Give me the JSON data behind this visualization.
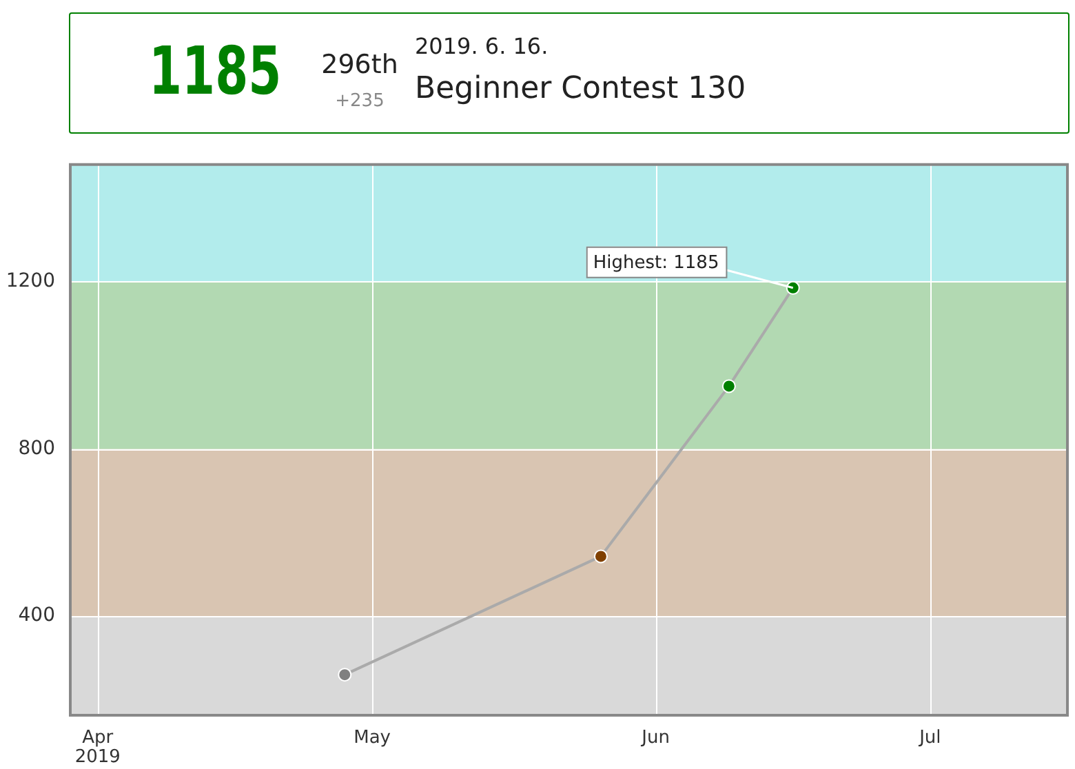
{
  "chart_data": {
    "type": "line",
    "x": [
      "2019-04-28",
      "2019-05-26",
      "2019-06-09",
      "2019-06-16"
    ],
    "series": [
      {
        "type": "line",
        "color": "#aaaaaa",
        "colors": [
          "#808080",
          "#804000",
          "#008000",
          "#008000"
        ],
        "values": [
          260,
          543,
          950,
          1185
        ]
      }
    ],
    "xlim": [
      "2019-03-29",
      "2019-07-16"
    ],
    "xticks": [
      {
        "value": "2019-04-01",
        "label": "Apr 2019"
      },
      {
        "value": "2019-05-01",
        "label": "May"
      },
      {
        "value": "2019-06-01",
        "label": "Jun"
      },
      {
        "value": "2019-07-01",
        "label": "Jul"
      }
    ],
    "ylim": [
      163,
      1480
    ],
    "yticks": [
      400,
      800,
      1200
    ],
    "bands": [
      {
        "axis": "y",
        "from": 163,
        "to": 400,
        "color": "#d9d9d9"
      },
      {
        "axis": "y",
        "from": 400,
        "to": 800,
        "color": "#d9c5b2"
      },
      {
        "axis": "y",
        "from": 800,
        "to": 1200,
        "color": "#b2d9b2"
      },
      {
        "axis": "y",
        "from": 1200,
        "to": 1480,
        "color": "#b2ecec"
      }
    ],
    "grid": true,
    "legend": false,
    "marker": "circle",
    "line_style": "solid",
    "annotations": [
      "1185",
      "296th",
      "+235",
      "2019. 6. 16.",
      "Beginner Contest 130",
      {
        "text": "Highest: 1185",
        "x": "2019-06-16",
        "y": 1185
      }
    ]
  }
}
